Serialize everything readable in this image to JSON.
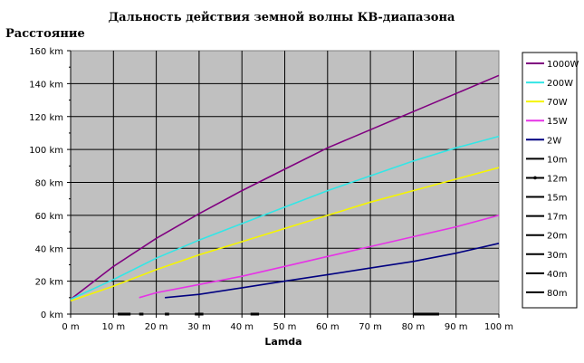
{
  "chart_data": {
    "type": "line",
    "title": "Дальность действия земной волны КВ-диапазона",
    "ylabel": "Расстояние",
    "xlabel": "Lamda",
    "xlim": [
      0,
      100
    ],
    "ylim": [
      0,
      160
    ],
    "x_ticks": [
      "0 m",
      "10 m",
      "20 m",
      "30 m",
      "40 m",
      "50 m",
      "60 m",
      "70 m",
      "80 m",
      "90 m",
      "100 m"
    ],
    "y_ticks": [
      "0 km",
      "20 km",
      "40 km",
      "60 km",
      "80 km",
      "100 km",
      "120 km",
      "140 km",
      "160 km"
    ],
    "grid": true,
    "legend_position": "right",
    "series": [
      {
        "name": "1000W",
        "color": "#800080",
        "x": [
          0,
          10,
          20,
          30,
          40,
          50,
          60,
          70,
          80,
          90,
          100
        ],
        "y": [
          9,
          29,
          46,
          61,
          75,
          88,
          101,
          112,
          123,
          134,
          145
        ]
      },
      {
        "name": "200W",
        "color": "#33e6e6",
        "x": [
          0,
          10,
          20,
          30,
          40,
          50,
          60,
          70,
          80,
          90,
          100
        ],
        "y": [
          9,
          21,
          34,
          45,
          55,
          65,
          75,
          84,
          93,
          101,
          108
        ]
      },
      {
        "name": "70W",
        "color": "#f5f500",
        "x": [
          0,
          10,
          20,
          30,
          40,
          50,
          60,
          70,
          80,
          90,
          100
        ],
        "y": [
          8,
          17,
          27,
          36,
          44,
          52,
          60,
          68,
          75,
          82,
          89
        ]
      },
      {
        "name": "15W",
        "color": "#e633e6",
        "x": [
          16,
          20,
          30,
          40,
          50,
          60,
          70,
          80,
          90,
          100
        ],
        "y": [
          10,
          13,
          18,
          23,
          29,
          35,
          41,
          47,
          53,
          60
        ]
      },
      {
        "name": "2W",
        "color": "#000080",
        "x": [
          22,
          30,
          40,
          50,
          60,
          70,
          80,
          90,
          100
        ],
        "y": [
          10,
          12,
          16,
          20,
          24,
          28,
          32,
          37,
          43
        ]
      },
      {
        "name": "10m",
        "color": "#000000",
        "x": [
          11,
          14
        ],
        "y": [
          0,
          0
        ]
      },
      {
        "name": "12m",
        "color": "#000000",
        "x": [
          16,
          17
        ],
        "y": [
          0,
          0
        ]
      },
      {
        "name": "15m",
        "color": "#000000",
        "x": [
          22,
          23
        ],
        "y": [
          0,
          0
        ]
      },
      {
        "name": "17m",
        "color": "#000000",
        "x": [
          29,
          31
        ],
        "y": [
          0,
          0
        ]
      },
      {
        "name": "20m",
        "color": "#000000",
        "x": [
          42,
          44
        ],
        "y": [
          0,
          0
        ]
      },
      {
        "name": "30m",
        "color": "#000000",
        "x": [
          80,
          86
        ],
        "y": [
          0,
          0
        ]
      },
      {
        "name": "40m",
        "color": "#000000",
        "x": [
          80,
          86
        ],
        "y": [
          0,
          0
        ]
      },
      {
        "name": "80m",
        "color": "#000000",
        "x": [
          80,
          86
        ],
        "y": [
          0,
          0
        ]
      }
    ]
  },
  "colors": {
    "plot_background": "#c0c0c0",
    "grid": "#000000"
  }
}
